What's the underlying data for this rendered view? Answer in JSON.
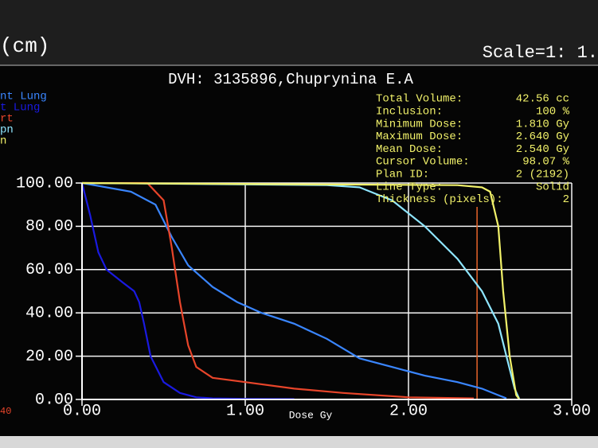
{
  "chart_data": {
    "type": "line",
    "header_left": "(cm)",
    "header_right": "Scale=1: 1.",
    "title": "DVH: 3135896,Chuprynina E.A",
    "x_label": "Dose Gy",
    "corner_label": "40",
    "xlim": [
      0,
      3
    ],
    "ylim": [
      0,
      100
    ],
    "xticks": [
      {
        "value": 0,
        "label": "0.00"
      },
      {
        "value": 1,
        "label": "1.00"
      },
      {
        "value": 2,
        "label": "2.00"
      },
      {
        "value": 3,
        "label": "3.00"
      }
    ],
    "yticks": [
      {
        "value": 0,
        "label": "0.00"
      },
      {
        "value": 20,
        "label": "20.00"
      },
      {
        "value": 40,
        "label": "40.00"
      },
      {
        "value": 60,
        "label": "60.00"
      },
      {
        "value": 80,
        "label": "80.00"
      },
      {
        "value": 100,
        "label": "100.00"
      }
    ],
    "grid": true,
    "cursor_dose": 2.42,
    "cursor_color": "#e8642a",
    "series": [
      {
        "name": "nt Lung",
        "color": "#3a86ff",
        "x": [
          0,
          0.3,
          0.45,
          0.55,
          0.65,
          0.8,
          0.95,
          1.1,
          1.3,
          1.5,
          1.7,
          1.9,
          2.1,
          2.3,
          2.45,
          2.55,
          2.6
        ],
        "values": [
          100,
          96,
          90,
          75,
          62,
          52,
          45,
          40,
          35,
          28,
          19,
          15,
          11,
          8,
          5,
          2,
          0.5
        ]
      },
      {
        "name": "t Lung",
        "color": "#1a1ae0",
        "x": [
          0,
          0.05,
          0.1,
          0.15,
          0.25,
          0.32,
          0.35,
          0.38,
          0.42,
          0.5,
          0.6,
          0.7,
          0.8,
          1.0,
          1.3
        ],
        "values": [
          100,
          85,
          68,
          60,
          54,
          50,
          45,
          35,
          20,
          8,
          3,
          1,
          0.5,
          0.3,
          0.2
        ]
      },
      {
        "name": "rt",
        "color": "#e8452a",
        "x": [
          0,
          0.4,
          0.5,
          0.55,
          0.6,
          0.65,
          0.7,
          0.8,
          1.0,
          1.3,
          1.6,
          2.0,
          2.4
        ],
        "values": [
          100,
          100,
          92,
          70,
          45,
          25,
          15,
          10,
          8,
          5,
          3,
          1,
          0.5
        ]
      },
      {
        "name": "pn",
        "color": "#8fe6ff",
        "x": [
          0,
          1.5,
          1.7,
          1.9,
          2.1,
          2.3,
          2.45,
          2.55,
          2.6,
          2.65,
          2.68
        ],
        "values": [
          100,
          99,
          98,
          92,
          80,
          65,
          50,
          35,
          20,
          5,
          0
        ]
      },
      {
        "name": "n",
        "color": "#f2f26a",
        "x": [
          0,
          2.3,
          2.45,
          2.5,
          2.55,
          2.58,
          2.62,
          2.66,
          2.68
        ],
        "values": [
          100,
          99,
          98,
          96,
          80,
          50,
          20,
          2,
          0
        ]
      }
    ],
    "info": [
      {
        "label": "Total Volume:",
        "value": "42.56 cc"
      },
      {
        "label": "Inclusion:",
        "value": "100 %"
      },
      {
        "label": "Minimum Dose:",
        "value": "1.810 Gy"
      },
      {
        "label": "Maximum Dose:",
        "value": "2.640 Gy"
      },
      {
        "label": "Mean Dose:",
        "value": "2.540 Gy"
      },
      {
        "label": "Cursor Volume:",
        "value": "98.07 %"
      },
      {
        "label": "Plan ID:",
        "value": "2 (2192)"
      },
      {
        "label": "Line Type:",
        "value": "Solid"
      },
      {
        "label": "Thickness (pixels):",
        "value": "2"
      }
    ]
  }
}
